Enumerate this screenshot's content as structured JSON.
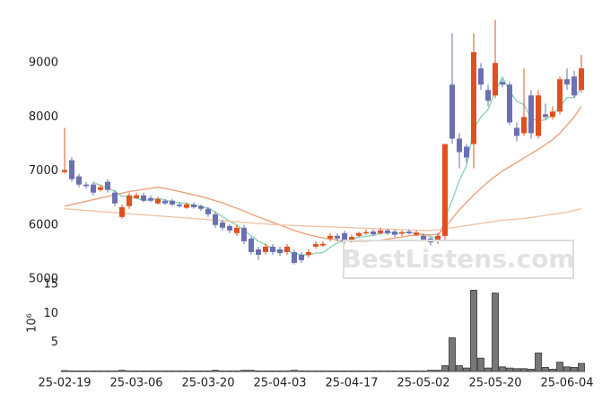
{
  "chart_data": {
    "type": "candlestick",
    "up_color": "#e0501e",
    "down_color": "#6a70b2",
    "categories": [
      "25-02-19",
      null,
      null,
      null,
      null,
      null,
      null,
      null,
      null,
      null,
      "25-03-06",
      null,
      null,
      null,
      null,
      null,
      null,
      null,
      null,
      null,
      "25-03-20",
      null,
      null,
      null,
      null,
      null,
      null,
      null,
      null,
      null,
      "25-04-03",
      null,
      null,
      null,
      null,
      null,
      null,
      null,
      null,
      null,
      "25-04-17",
      null,
      null,
      null,
      null,
      null,
      null,
      null,
      null,
      null,
      "25-05-02",
      null,
      null,
      null,
      null,
      null,
      null,
      null,
      null,
      null,
      "25-05-20",
      null,
      null,
      null,
      null,
      null,
      null,
      null,
      null,
      null,
      "25-06-04",
      null,
      null
    ],
    "open": [
      6980,
      7200,
      6900,
      6750,
      6750,
      6650,
      6800,
      6600,
      6150,
      6350,
      6500,
      6550,
      6500,
      6400,
      6450,
      6450,
      6380,
      6320,
      6380,
      6350,
      6300,
      6200,
      6050,
      5980,
      5850,
      5950,
      5750,
      5550,
      5500,
      5600,
      5550,
      5500,
      5500,
      5450,
      5450,
      5600,
      5620,
      5750,
      5800,
      5850,
      5720,
      5800,
      5850,
      5880,
      5850,
      5900,
      5880,
      5840,
      5880,
      5820,
      5800,
      5750,
      5700,
      5800,
      8600,
      7600,
      7450,
      7500,
      8900,
      8500,
      8400,
      8650,
      8600,
      7800,
      7700,
      8400,
      7650,
      8050,
      8000,
      8100,
      8700,
      8750,
      8500
    ],
    "high": [
      7800,
      7250,
      6950,
      6800,
      6800,
      6750,
      6850,
      6650,
      6380,
      6600,
      6600,
      6600,
      6550,
      6520,
      6480,
      6480,
      6420,
      6420,
      6420,
      6380,
      6330,
      6250,
      6100,
      6020,
      6000,
      6000,
      5780,
      5600,
      5650,
      5650,
      5600,
      5650,
      5550,
      5500,
      5550,
      5700,
      5700,
      5850,
      5850,
      5900,
      5820,
      5880,
      5920,
      5920,
      5950,
      5930,
      5920,
      5900,
      5920,
      5900,
      5850,
      5780,
      5850,
      7500,
      9550,
      7700,
      7500,
      9550,
      9000,
      8600,
      9800,
      8700,
      8650,
      7900,
      8900,
      8500,
      8500,
      8250,
      8200,
      8750,
      8900,
      8850,
      9150
    ],
    "low": [
      6950,
      6800,
      6700,
      6680,
      6550,
      6620,
      6600,
      6350,
      6120,
      6300,
      6480,
      6420,
      6420,
      6380,
      6370,
      6350,
      6320,
      6300,
      6300,
      6260,
      6150,
      5950,
      5900,
      5850,
      5800,
      5650,
      5450,
      5350,
      5450,
      5450,
      5430,
      5450,
      5270,
      5300,
      5400,
      5560,
      5600,
      5700,
      5700,
      5650,
      5680,
      5770,
      5820,
      5800,
      5820,
      5820,
      5780,
      5800,
      5820,
      5800,
      5700,
      5620,
      5650,
      5700,
      7500,
      7050,
      7150,
      7050,
      8500,
      8200,
      8350,
      8550,
      7850,
      7550,
      7650,
      7600,
      7600,
      7950,
      7950,
      8050,
      8500,
      8350,
      8450
    ],
    "close": [
      7020,
      6850,
      6750,
      6720,
      6600,
      6700,
      6650,
      6400,
      6330,
      6550,
      6550,
      6450,
      6450,
      6480,
      6400,
      6380,
      6350,
      6380,
      6330,
      6300,
      6200,
      6000,
      5950,
      5900,
      5950,
      5700,
      5500,
      5450,
      5600,
      5500,
      5480,
      5600,
      5300,
      5350,
      5500,
      5650,
      5650,
      5800,
      5750,
      5700,
      5780,
      5850,
      5870,
      5830,
      5900,
      5850,
      5820,
      5870,
      5850,
      5860,
      5720,
      5680,
      5800,
      7500,
      7600,
      7350,
      7250,
      9200,
      8600,
      8300,
      9000,
      8600,
      7900,
      7650,
      8000,
      7700,
      8400,
      8000,
      8100,
      8700,
      8600,
      8400,
      8900
    ],
    "lines": [
      {
        "color": "#8fd3b4",
        "values": [
          null,
          null,
          null,
          null,
          6788,
          6734,
          6684,
          6624,
          6536,
          6526,
          6496,
          6456,
          6466,
          6496,
          6466,
          6432,
          6412,
          6398,
          6368,
          6348,
          6312,
          6242,
          6156,
          6070,
          6000,
          5900,
          5800,
          5700,
          5640,
          5550,
          5506,
          5526,
          5476,
          5446,
          5446,
          5480,
          5490,
          5590,
          5670,
          5710,
          5736,
          5776,
          5790,
          5806,
          5846,
          5854,
          5854,
          5854,
          5858,
          5850,
          5824,
          5786,
          5746,
          6112,
          6460,
          6826,
          7100,
          7780,
          8000,
          8140,
          8470,
          8740,
          8480,
          8290,
          8230,
          7970,
          7930,
          7950,
          8040,
          8180,
          8360,
          8360,
          8540
        ]
      },
      {
        "color": "#eba27e",
        "values": [
          6350,
          6380,
          6410,
          6440,
          6470,
          6500,
          6530,
          6560,
          6590,
          6620,
          6640,
          6660,
          6680,
          6700,
          6680,
          6650,
          6620,
          6590,
          6560,
          6530,
          6490,
          6450,
          6410,
          6360,
          6310,
          6260,
          6200,
          6150,
          6100,
          6050,
          6000,
          5950,
          5900,
          5860,
          5820,
          5790,
          5760,
          5740,
          5720,
          5710,
          5700,
          5700,
          5700,
          5710,
          5720,
          5740,
          5760,
          5780,
          5800,
          5810,
          5820,
          5820,
          5830,
          5950,
          6120,
          6280,
          6420,
          6560,
          6680,
          6800,
          6900,
          7000,
          7080,
          7160,
          7240,
          7320,
          7400,
          7490,
          7580,
          7700,
          7850,
          8000,
          8200
        ]
      },
      {
        "color": "#f1c4a8",
        "values": [
          6300,
          6290,
          6280,
          6270,
          6260,
          6250,
          6240,
          6230,
          6220,
          6210,
          6200,
          6190,
          6180,
          6170,
          6160,
          6150,
          6140,
          6130,
          6120,
          6110,
          6100,
          6090,
          6080,
          6070,
          6060,
          6050,
          6040,
          6030,
          6020,
          6010,
          6000,
          5995,
          5990,
          5985,
          5980,
          5975,
          5970,
          5965,
          5960,
          5955,
          5950,
          5945,
          5940,
          5935,
          5930,
          5925,
          5920,
          5915,
          5910,
          5905,
          5900,
          5900,
          5910,
          5930,
          5950,
          5970,
          5990,
          6010,
          6030,
          6050,
          6070,
          6090,
          6100,
          6110,
          6120,
          6140,
          6160,
          6180,
          6200,
          6220,
          6240,
          6270,
          6300
        ]
      }
    ],
    "ylim": [
      5000,
      10000
    ],
    "yticks": [
      5000,
      6000,
      7000,
      8000,
      9000
    ],
    "grid": true,
    "watermark": "BestListens.com",
    "volume": {
      "type": "bar",
      "color": "#777777",
      "y_unit_label": "10⁶",
      "values": [
        0.15,
        0.1,
        0.1,
        0.1,
        0.1,
        0.1,
        0.1,
        0.1,
        0.2,
        0.1,
        0.1,
        0.1,
        0.1,
        0.1,
        0.1,
        0.1,
        0.1,
        0.1,
        0.1,
        0.1,
        0.1,
        0.2,
        0.1,
        0.1,
        0.1,
        0.2,
        0.2,
        0.1,
        0.1,
        0.1,
        0.1,
        0.1,
        0.2,
        0.1,
        0.1,
        0.1,
        0.1,
        0.1,
        0.1,
        0.1,
        0.1,
        0.1,
        0.1,
        0.1,
        0.1,
        0.1,
        0.1,
        0.1,
        0.1,
        0.1,
        0.1,
        0.2,
        0.2,
        1.0,
        5.8,
        1.0,
        0.6,
        14.0,
        2.3,
        0.6,
        13.5,
        0.8,
        0.6,
        0.5,
        0.5,
        0.4,
        3.2,
        0.7,
        0.4,
        1.6,
        0.8,
        0.7,
        1.4
      ],
      "ylim": [
        0,
        15.3
      ],
      "yticks": [
        5,
        10,
        15
      ]
    }
  }
}
